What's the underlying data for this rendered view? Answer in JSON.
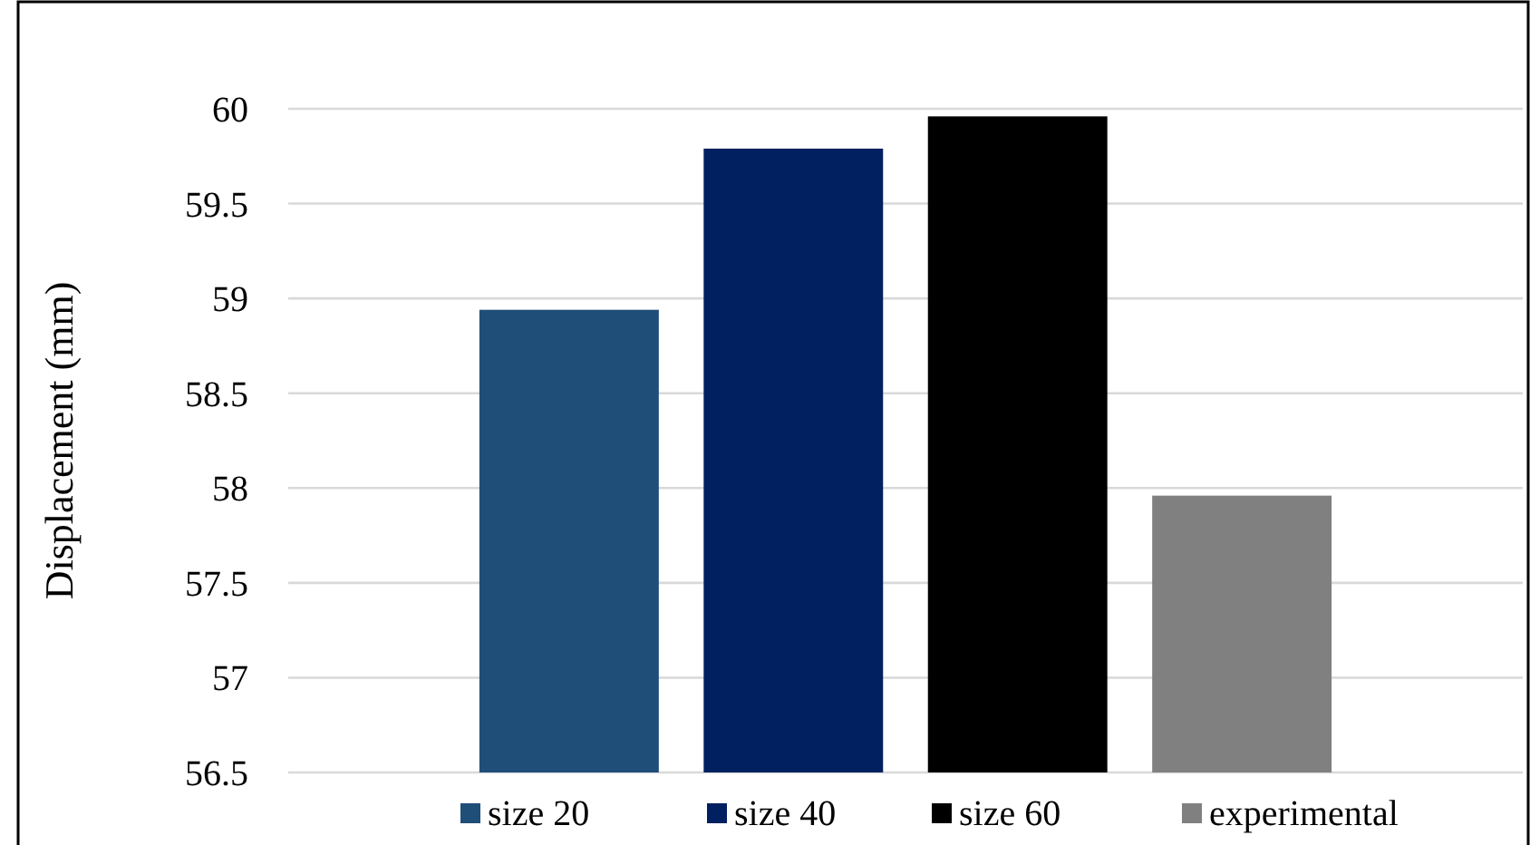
{
  "chart_data": {
    "type": "bar",
    "ylabel": "Displacement (mm)",
    "categories": [
      null
    ],
    "series": [
      {
        "name": "size 20",
        "color": "#1f4e79",
        "values": [
          58.94
        ]
      },
      {
        "name": "size 40",
        "color": "#002060",
        "values": [
          59.79
        ]
      },
      {
        "name": "size 60",
        "color": "#000000",
        "values": [
          59.96
        ]
      },
      {
        "name": "experimental",
        "color": "#808080",
        "values": [
          57.96
        ]
      }
    ],
    "ylim": [
      56.5,
      60
    ],
    "yticks": [
      56.5,
      57,
      57.5,
      58,
      58.5,
      59,
      59.5,
      60
    ],
    "grid": "y",
    "legend": "bottom"
  }
}
